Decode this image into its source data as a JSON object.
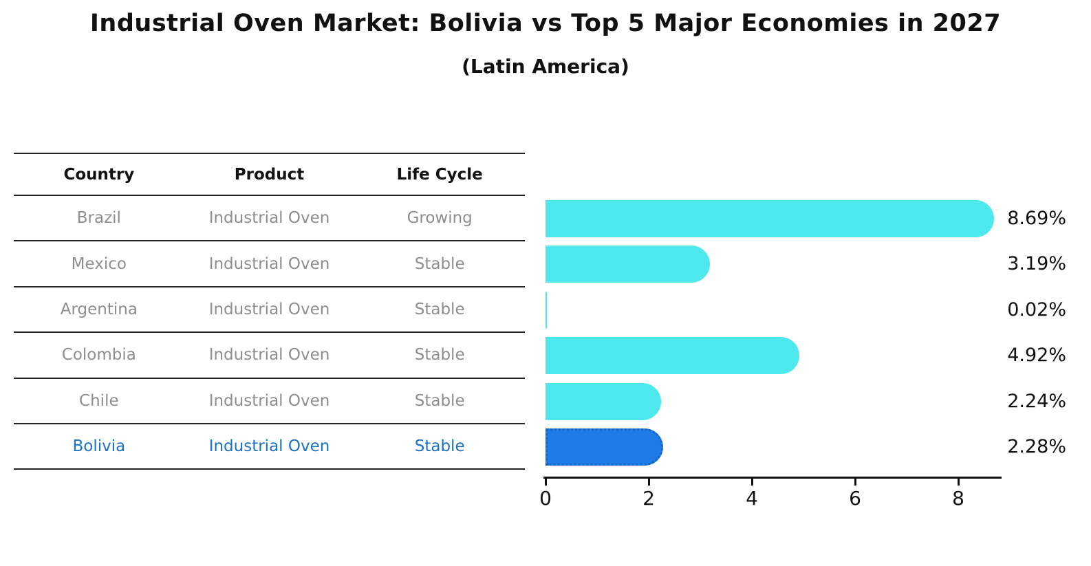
{
  "header": {
    "title": "Industrial Oven Market: Bolivia vs Top 5 Major Economies in 2027",
    "subtitle": "(Latin America)"
  },
  "table": {
    "headers": [
      "Country",
      "Product",
      "Life Cycle"
    ],
    "rows": [
      {
        "country": "Brazil",
        "product": "Industrial Oven",
        "life_cycle": "Growing",
        "highlight": false
      },
      {
        "country": "Mexico",
        "product": "Industrial Oven",
        "life_cycle": "Stable",
        "highlight": false
      },
      {
        "country": "Argentina",
        "product": "Industrial Oven",
        "life_cycle": "Stable",
        "highlight": false
      },
      {
        "country": "Colombia",
        "product": "Industrial Oven",
        "life_cycle": "Stable",
        "highlight": false
      },
      {
        "country": "Chile",
        "product": "Industrial Oven",
        "life_cycle": "Stable",
        "highlight": false
      },
      {
        "country": "Bolivia",
        "product": "Industrial Oven",
        "life_cycle": "Stable",
        "highlight": true
      }
    ]
  },
  "chart_data": {
    "type": "bar",
    "orientation": "horizontal",
    "title": "Industrial Oven Market: Bolivia vs Top 5 Major Economies in 2027",
    "subtitle": "(Latin America)",
    "categories": [
      "Brazil",
      "Mexico",
      "Argentina",
      "Colombia",
      "Chile",
      "Bolivia"
    ],
    "values": [
      8.69,
      3.19,
      0.02,
      4.92,
      2.24,
      2.28
    ],
    "value_labels": [
      "8.69%",
      "3.19%",
      "0.02%",
      "4.92%",
      "2.24%",
      "2.28%"
    ],
    "x_tick_labels": [
      "0",
      "2",
      "4",
      "6",
      "8"
    ],
    "x_tick_values": [
      0,
      2,
      4,
      6,
      8
    ],
    "xlim": [
      0,
      9.2
    ],
    "grid": false,
    "legend": false,
    "bar_color": "#4DE8EB",
    "highlight_index": 5,
    "highlight_color": "#1E7BE8",
    "highlight_border_color": "#1565C0",
    "table_text_color": "#8E8E8E",
    "highlight_text_color": "#1A73C8",
    "axis_color": "#111111"
  }
}
